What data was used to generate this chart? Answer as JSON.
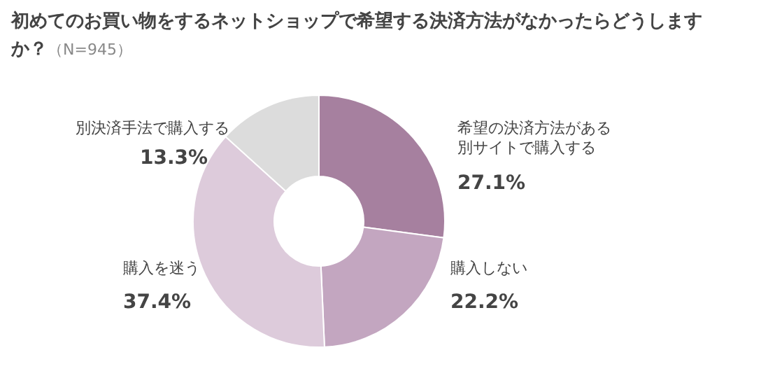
{
  "chart_data": {
    "type": "donut",
    "title": "初めてのお買い物をするネットショップで希望する決済方法がなかったらどうしますか？",
    "subtitle": "（N=945）",
    "categories": [
      "希望の決済方法がある別サイトで購入する",
      "購入しない",
      "購入を迷う",
      "別決済手法で購入する"
    ],
    "values": [
      27.1,
      22.2,
      37.4,
      13.3
    ],
    "colors": [
      "#a6809f",
      "#c3a6c0",
      "#ddcbdb",
      "#dcdcdc"
    ],
    "value_labels": [
      "27.1%",
      "22.2%",
      "37.4%",
      "13.3%"
    ]
  }
}
